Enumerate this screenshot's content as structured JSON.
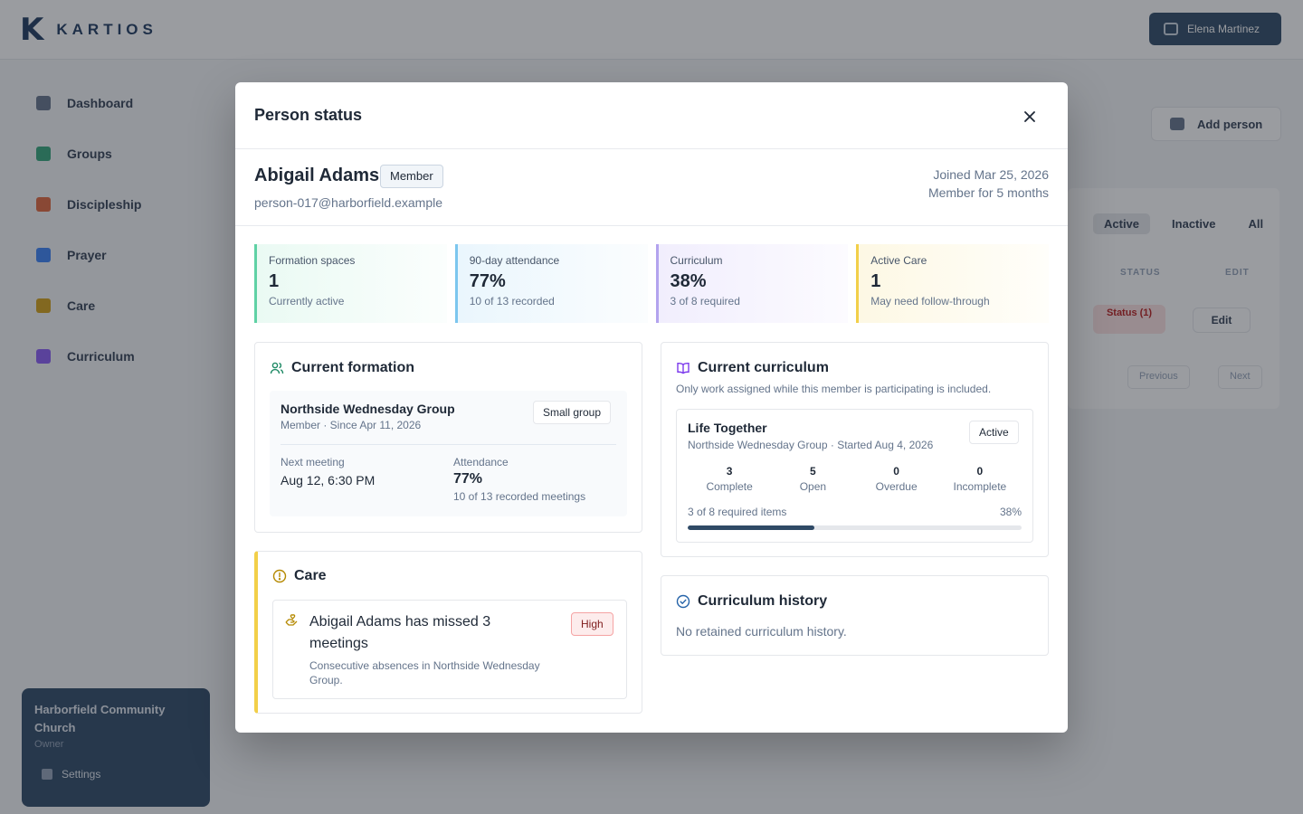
{
  "app": {
    "logo_mark": "K",
    "logo_word": "KARTIOS",
    "user_name": "Elena Martinez",
    "nav": [
      "Dashboard",
      "Groups",
      "Discipleship",
      "Prayer",
      "Care",
      "Curriculum"
    ],
    "nav_colors": [
      "#64748b",
      "#34a67a",
      "#e0663d",
      "#3b82f6",
      "#d4a017",
      "#8b5cf6"
    ],
    "org_name": "Harborfield Community Church",
    "org_role": "Owner",
    "settings_label": "Settings",
    "add_person_label": "Add person",
    "tabs": [
      "Active",
      "Inactive",
      "All"
    ],
    "col_status": "STATUS",
    "col_edit": "EDIT",
    "row_status": "Status (1)",
    "row_edit": "Edit",
    "pager_prev": "Previous",
    "pager_next": "Next"
  },
  "modal": {
    "title": "Person status",
    "close_icon": "close-icon"
  },
  "person": {
    "name": "Abigail Adams",
    "role_badge": "Member",
    "email": "person-017@harborfield.example",
    "joined": "Joined Mar 25, 2026",
    "tenure": "Member for 5 months"
  },
  "stats": [
    {
      "label": "Formation spaces",
      "value": "1",
      "sub": "Currently active"
    },
    {
      "label": "90-day attendance",
      "value": "77%",
      "sub": "10 of 13 recorded"
    },
    {
      "label": "Curriculum",
      "value": "38%",
      "sub": "3 of 8 required"
    },
    {
      "label": "Active Care",
      "value": "1",
      "sub": "May need follow-through"
    }
  ],
  "formation": {
    "title": "Current formation",
    "group_name": "Northside Wednesday Group",
    "group_meta": "Member · Since Apr 11, 2026",
    "group_type": "Small group",
    "next_label": "Next meeting",
    "next_value": "Aug 12, 6:30 PM",
    "att_label": "Attendance",
    "att_value": "77%",
    "att_sub": "10 of 13 recorded meetings"
  },
  "care": {
    "title": "Care",
    "item_title": "Abigail Adams has missed 3 meetings",
    "item_desc": "Consecutive absences in Northside Wednesday Group.",
    "priority": "High"
  },
  "curriculum": {
    "title": "Current curriculum",
    "desc": "Only work assigned while this member is participating is included.",
    "course_name": "Life Together",
    "course_meta": "Northside Wednesday Group · Started Aug 4, 2026",
    "course_status": "Active",
    "counts": [
      {
        "n": "3",
        "k": "Complete"
      },
      {
        "n": "5",
        "k": "Open"
      },
      {
        "n": "0",
        "k": "Overdue"
      },
      {
        "n": "0",
        "k": "Incomplete"
      }
    ],
    "progress_label": "3 of 8 required items",
    "progress_pct": "38%",
    "progress_value": 0.38
  },
  "history": {
    "title": "Curriculum history",
    "empty": "No retained curriculum history."
  }
}
